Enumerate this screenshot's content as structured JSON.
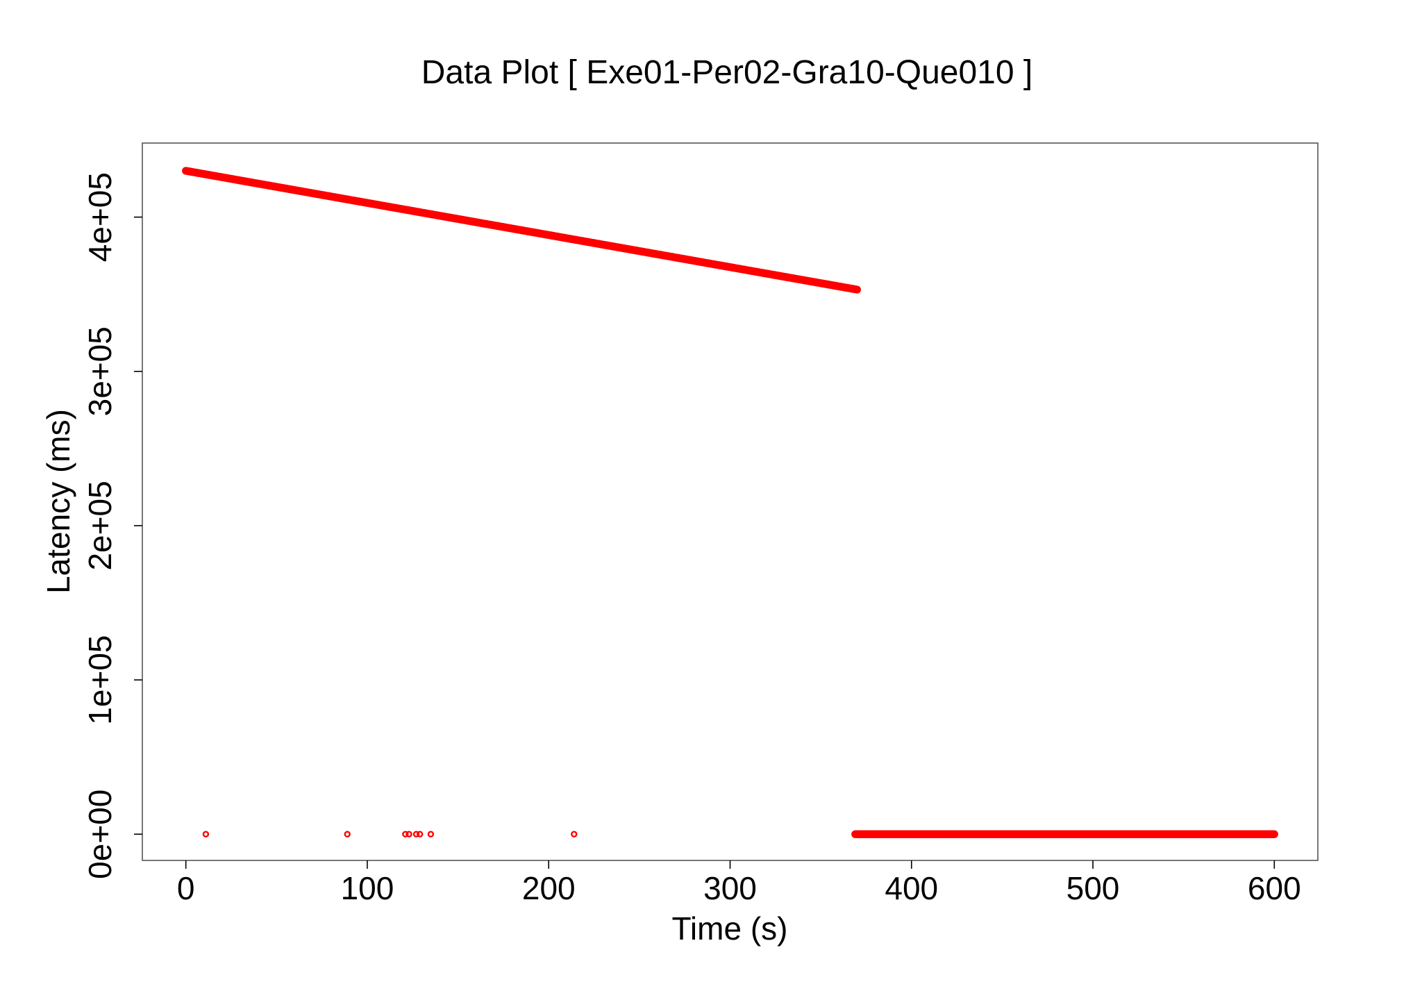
{
  "chart_data": {
    "type": "scatter",
    "title": "Data Plot [ Exe01-Per02-Gra10-Que010 ]",
    "xlabel": "Time (s)",
    "ylabel": "Latency (ms)",
    "xlim": [
      -24,
      624
    ],
    "ylim": [
      -17000,
      448000
    ],
    "x_ticks": [
      0,
      100,
      200,
      300,
      400,
      500,
      600
    ],
    "x_tick_labels": [
      "0",
      "100",
      "200",
      "300",
      "400",
      "500",
      "600"
    ],
    "y_ticks": [
      0,
      100000,
      200000,
      300000,
      400000
    ],
    "y_tick_labels": [
      "0e+00",
      "1e+05",
      "2e+05",
      "3e+05",
      "4e+05"
    ],
    "grid": false,
    "series": [
      {
        "color": "#ff0000",
        "marker": "open-circle",
        "segments": [
          {
            "kind": "dense",
            "x_start": 0,
            "x_end": 370,
            "y_start": 430000,
            "y_end": 353000
          },
          {
            "kind": "dense",
            "x_start": 369,
            "x_end": 600,
            "y_start": 0,
            "y_end": 0
          }
        ],
        "points": [
          {
            "x": 11,
            "y": 0
          },
          {
            "x": 89,
            "y": 0
          },
          {
            "x": 121,
            "y": 0
          },
          {
            "x": 123,
            "y": 0
          },
          {
            "x": 127,
            "y": 0
          },
          {
            "x": 129,
            "y": 0
          },
          {
            "x": 135,
            "y": 0
          },
          {
            "x": 214,
            "y": 0
          }
        ]
      }
    ]
  }
}
